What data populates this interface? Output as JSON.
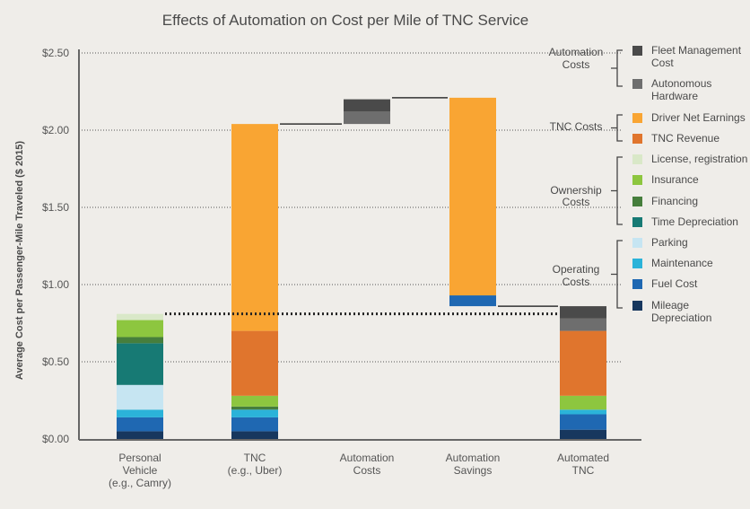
{
  "chart_data": {
    "type": "bar",
    "subtype": "waterfall-stacked",
    "title": "Effects of Automation on Cost per Mile of TNC Service",
    "ylabel": "Average Cost per Passenger-Mile Traveled ($ 2015)",
    "xlabel": "",
    "ylim": [
      0,
      2.5
    ],
    "yticks": [
      "$0.00",
      "$0.50",
      "$1.00",
      "$1.50",
      "$2.00",
      "$2.50"
    ],
    "ytick_values": [
      0,
      0.5,
      1.0,
      1.5,
      2.0,
      2.5
    ],
    "grid": "dotted horizontal",
    "legend_position": "right",
    "categories": [
      [
        "Personal",
        "Vehicle",
        "(e.g., Camry)"
      ],
      [
        "TNC",
        "(e.g., Uber)"
      ],
      [
        "Automation",
        "Costs"
      ],
      [
        "Automation",
        "Savings"
      ],
      [
        "Automated",
        "TNC"
      ]
    ],
    "series": [
      {
        "name": "Mileage Depreciation",
        "color": "#17375e"
      },
      {
        "name": "Fuel Cost",
        "color": "#1f68b2"
      },
      {
        "name": "Maintenance",
        "color": "#2bb3d9"
      },
      {
        "name": "Parking",
        "color": "#c6e5f2"
      },
      {
        "name": "Time Depreciation",
        "color": "#177a74"
      },
      {
        "name": "Financing",
        "color": "#467e3c"
      },
      {
        "name": "Insurance",
        "color": "#8dc63f"
      },
      {
        "name": "License, registration",
        "color": "#d9e8c8"
      },
      {
        "name": "TNC Revenue",
        "color": "#e0752d"
      },
      {
        "name": "Driver Net Earnings",
        "color": "#f9a533"
      },
      {
        "name": "Autonomous Hardware",
        "color": "#6e6e6e"
      },
      {
        "name": "Fleet Management Cost",
        "color": "#4a4a4a"
      }
    ],
    "bars": [
      {
        "category": 0,
        "segments": [
          {
            "series": "Mileage Depreciation",
            "from": 0.0,
            "to": 0.05
          },
          {
            "series": "Fuel Cost",
            "from": 0.05,
            "to": 0.14
          },
          {
            "series": "Maintenance",
            "from": 0.14,
            "to": 0.19
          },
          {
            "series": "Parking",
            "from": 0.19,
            "to": 0.35
          },
          {
            "series": "Time Depreciation",
            "from": 0.35,
            "to": 0.62
          },
          {
            "series": "Financing",
            "from": 0.62,
            "to": 0.66
          },
          {
            "series": "Insurance",
            "from": 0.66,
            "to": 0.77
          },
          {
            "series": "License, registration",
            "from": 0.77,
            "to": 0.81
          }
        ]
      },
      {
        "category": 1,
        "segments": [
          {
            "series": "Mileage Depreciation",
            "from": 0.0,
            "to": 0.05
          },
          {
            "series": "Fuel Cost",
            "from": 0.05,
            "to": 0.14
          },
          {
            "series": "Maintenance",
            "from": 0.14,
            "to": 0.19
          },
          {
            "series": "Financing",
            "from": 0.19,
            "to": 0.21
          },
          {
            "series": "Insurance",
            "from": 0.21,
            "to": 0.28
          },
          {
            "series": "TNC Revenue",
            "from": 0.28,
            "to": 0.7
          },
          {
            "series": "Driver Net Earnings",
            "from": 0.7,
            "to": 2.04
          }
        ]
      },
      {
        "category": 2,
        "segments": [
          {
            "series": "Autonomous Hardware",
            "from": 2.04,
            "to": 2.12
          },
          {
            "series": "Fleet Management Cost",
            "from": 2.12,
            "to": 2.2
          }
        ]
      },
      {
        "category": 3,
        "segments": [
          {
            "series": "Fuel Cost",
            "from": 0.86,
            "to": 0.93
          },
          {
            "series": "Driver Net Earnings",
            "from": 0.93,
            "to": 2.21
          }
        ]
      },
      {
        "category": 4,
        "segments": [
          {
            "series": "Mileage Depreciation",
            "from": 0.0,
            "to": 0.06
          },
          {
            "series": "Fuel Cost",
            "from": 0.06,
            "to": 0.16
          },
          {
            "series": "Maintenance",
            "from": 0.16,
            "to": 0.19
          },
          {
            "series": "Insurance",
            "from": 0.19,
            "to": 0.28
          },
          {
            "series": "TNC Revenue",
            "from": 0.28,
            "to": 0.7
          },
          {
            "series": "Autonomous Hardware",
            "from": 0.7,
            "to": 0.78
          },
          {
            "series": "Fleet Management Cost",
            "from": 0.78,
            "to": 0.86
          }
        ]
      }
    ],
    "connectors": [
      {
        "from_category": 1,
        "to_category": 2,
        "y": 2.04
      },
      {
        "from_category": 2,
        "to_category": 3,
        "y": 2.21
      },
      {
        "from_category": 3,
        "to_category": 4,
        "y": 0.86
      }
    ],
    "reference_line": {
      "y": 0.81,
      "style": "dotted"
    },
    "legend_groups": [
      {
        "label": [
          "Automation",
          "Costs"
        ],
        "items": [
          "Fleet Management Cost",
          "Autonomous Hardware"
        ]
      },
      {
        "label": [
          "TNC Costs"
        ],
        "items": [
          "Driver Net Earnings",
          "TNC Revenue"
        ]
      },
      {
        "label": [
          "Ownership",
          "Costs"
        ],
        "items": [
          "License, registration",
          "Insurance",
          "Financing",
          "Time Depreciation"
        ]
      },
      {
        "label": [
          "Operating",
          "Costs"
        ],
        "items": [
          "Parking",
          "Maintenance",
          "Fuel Cost",
          "Mileage Depreciation"
        ]
      }
    ],
    "legend_labels": {
      "Fleet Management Cost": [
        "Fleet Management",
        "Cost"
      ],
      "Autonomous Hardware": [
        "Autonomous",
        "Hardware"
      ],
      "Driver Net Earnings": [
        "Driver Net Earnings"
      ],
      "TNC Revenue": [
        "TNC Revenue"
      ],
      "License, registration": [
        "License, registration"
      ],
      "Insurance": [
        "Insurance"
      ],
      "Financing": [
        "Financing"
      ],
      "Time Depreciation": [
        "Time Depreciation"
      ],
      "Parking": [
        "Parking"
      ],
      "Maintenance": [
        "Maintenance"
      ],
      "Fuel Cost": [
        "Fuel Cost"
      ],
      "Mileage Depreciation": [
        "Mileage",
        "Depreciation"
      ]
    }
  }
}
